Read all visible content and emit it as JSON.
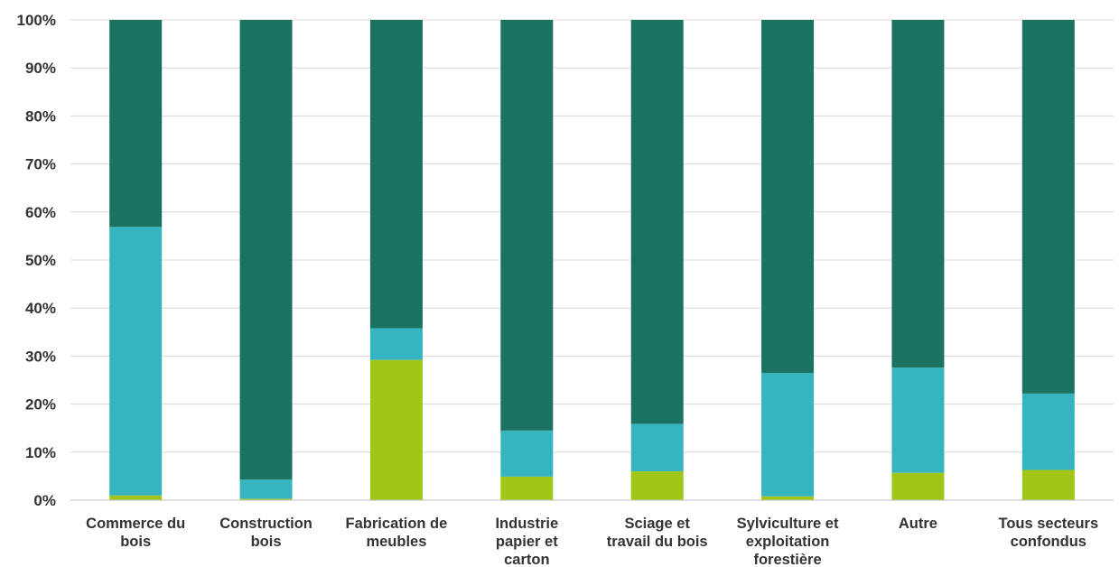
{
  "chart_data": {
    "type": "bar",
    "stacked": true,
    "percent": true,
    "title": "",
    "xlabel": "",
    "ylabel": "",
    "ylim": [
      0,
      100
    ],
    "yticks": [
      "0%",
      "10%",
      "20%",
      "30%",
      "40%",
      "50%",
      "60%",
      "70%",
      "80%",
      "90%",
      "100%"
    ],
    "grid": true,
    "legend": "none",
    "categories": [
      [
        "Commerce du",
        "bois"
      ],
      [
        "Construction",
        "bois"
      ],
      [
        "Fabrication de",
        "meubles"
      ],
      [
        "Industrie",
        "papier et",
        "carton"
      ],
      [
        "Sciage et",
        "travail du bois"
      ],
      [
        "Sylviculture et",
        "exploitation",
        "forestière"
      ],
      [
        "Autre"
      ],
      [
        "Tous secteurs",
        "confondus"
      ]
    ],
    "series": [
      {
        "color": "#a2c617",
        "values": [
          1.0,
          0.3,
          29.2,
          4.9,
          6.0,
          0.8,
          5.7,
          6.3
        ]
      },
      {
        "color": "#36b5c0",
        "values": [
          55.9,
          4.0,
          6.6,
          9.6,
          9.9,
          25.7,
          21.9,
          15.9
        ]
      },
      {
        "color": "#1c7260",
        "values": [
          43.1,
          95.7,
          64.2,
          85.5,
          84.1,
          73.5,
          72.4,
          77.8
        ]
      }
    ]
  }
}
